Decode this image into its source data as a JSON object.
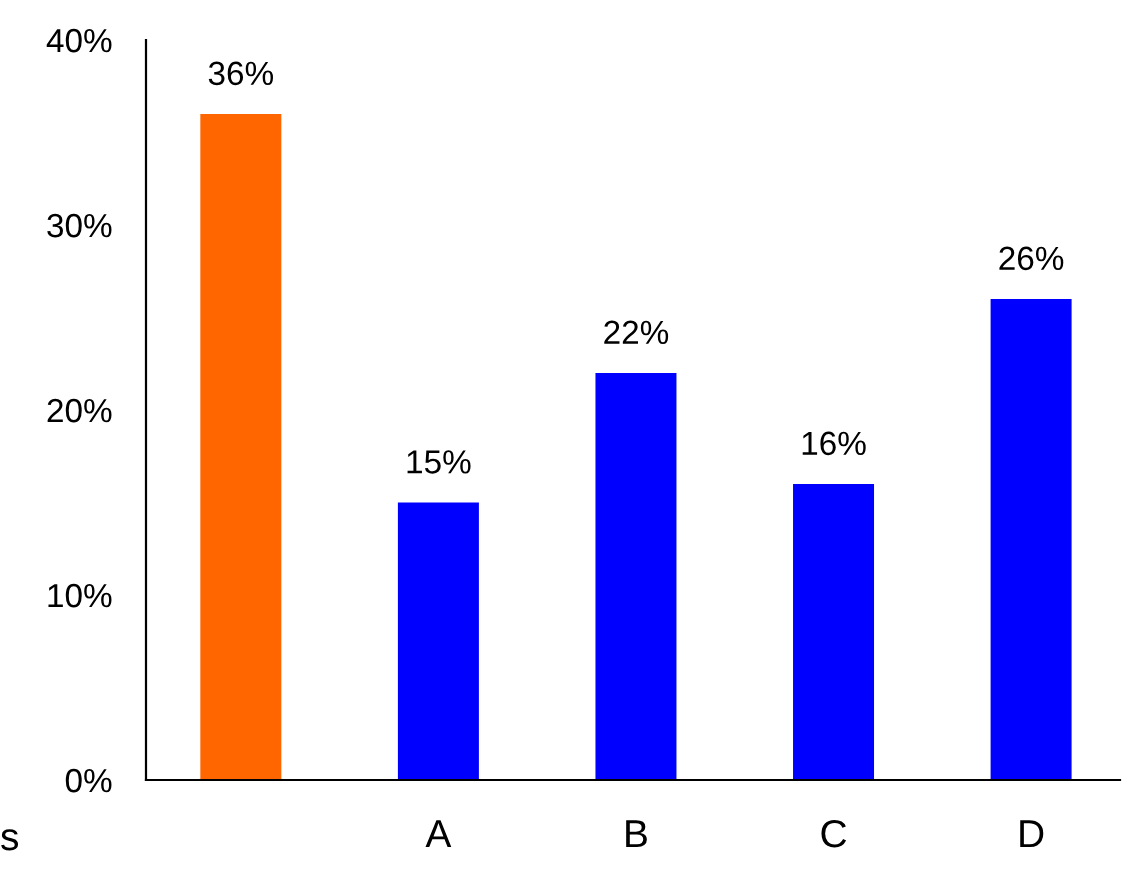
{
  "chart_data": {
    "type": "bar",
    "categories": [
      null,
      "A",
      "B",
      "C",
      "D"
    ],
    "values": [
      36,
      15,
      22,
      16,
      26
    ],
    "colors": [
      "#ff6600",
      "#0000ff",
      "#0000ff",
      "#0000ff",
      "#0000ff"
    ],
    "value_labels": [
      "36%",
      "15%",
      "22%",
      "16%",
      "26%"
    ],
    "ylim": [
      0,
      40
    ],
    "yticks": [
      {
        "value": 0,
        "label": "0%"
      },
      {
        "value": 10,
        "label": "10%"
      },
      {
        "value": 20,
        "label": "20%"
      },
      {
        "value": 30,
        "label": "30%"
      },
      {
        "value": 40,
        "label": "40%"
      }
    ],
    "grid": false,
    "legend": false,
    "annotations": [
      "s"
    ]
  }
}
